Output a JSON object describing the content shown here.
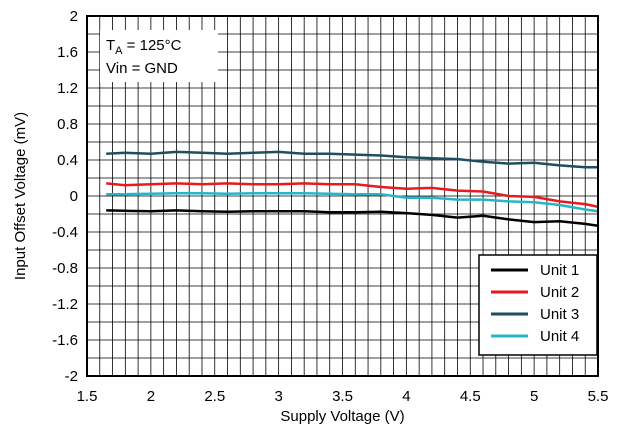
{
  "chart_data": {
    "type": "line",
    "xlabel": "Supply Voltage (V)",
    "ylabel": "Input Offset Voltage (mV)",
    "xlim": [
      1.5,
      5.5
    ],
    "ylim": [
      -2,
      2
    ],
    "x_ticks": [
      "1.5",
      "2",
      "2.5",
      "3",
      "3.5",
      "4",
      "4.5",
      "5",
      "5.5"
    ],
    "y_ticks": [
      "-2",
      "-1.6",
      "-1.2",
      "-0.8",
      "-0.4",
      "0",
      "0.4",
      "0.8",
      "1.2",
      "1.6",
      "2"
    ],
    "grid": true,
    "legend_position": "bottom-right",
    "annotation": {
      "line1_main": "T",
      "line1_sub": "A",
      "line1_rest": " = 125°C",
      "line2": "Vin = GND"
    },
    "x": [
      1.65,
      1.8,
      2.0,
      2.2,
      2.4,
      2.6,
      2.8,
      3.0,
      3.2,
      3.4,
      3.6,
      3.8,
      4.0,
      4.2,
      4.4,
      4.6,
      4.8,
      5.0,
      5.2,
      5.4,
      5.5
    ],
    "series": [
      {
        "name": "Unit 1",
        "color": "#000000",
        "values": [
          -0.16,
          -0.165,
          -0.17,
          -0.16,
          -0.17,
          -0.175,
          -0.17,
          -0.17,
          -0.17,
          -0.18,
          -0.18,
          -0.175,
          -0.19,
          -0.21,
          -0.24,
          -0.22,
          -0.26,
          -0.29,
          -0.28,
          -0.31,
          -0.33
        ]
      },
      {
        "name": "Unit 2",
        "color": "#e8191f",
        "values": [
          0.14,
          0.12,
          0.13,
          0.14,
          0.13,
          0.14,
          0.13,
          0.13,
          0.14,
          0.13,
          0.13,
          0.1,
          0.08,
          0.09,
          0.06,
          0.05,
          0.0,
          -0.01,
          -0.06,
          -0.09,
          -0.12
        ]
      },
      {
        "name": "Unit 3",
        "color": "#1e4f5f",
        "values": [
          0.47,
          0.48,
          0.47,
          0.49,
          0.48,
          0.47,
          0.48,
          0.49,
          0.47,
          0.47,
          0.46,
          0.45,
          0.43,
          0.42,
          0.41,
          0.38,
          0.36,
          0.37,
          0.34,
          0.32,
          0.32
        ]
      },
      {
        "name": "Unit 4",
        "color": "#27b4c8",
        "values": [
          0.02,
          0.02,
          0.025,
          0.03,
          0.03,
          0.025,
          0.03,
          0.03,
          0.03,
          0.025,
          0.02,
          0.02,
          -0.02,
          -0.02,
          -0.04,
          -0.04,
          -0.06,
          -0.07,
          -0.1,
          -0.15,
          -0.17
        ]
      }
    ]
  }
}
